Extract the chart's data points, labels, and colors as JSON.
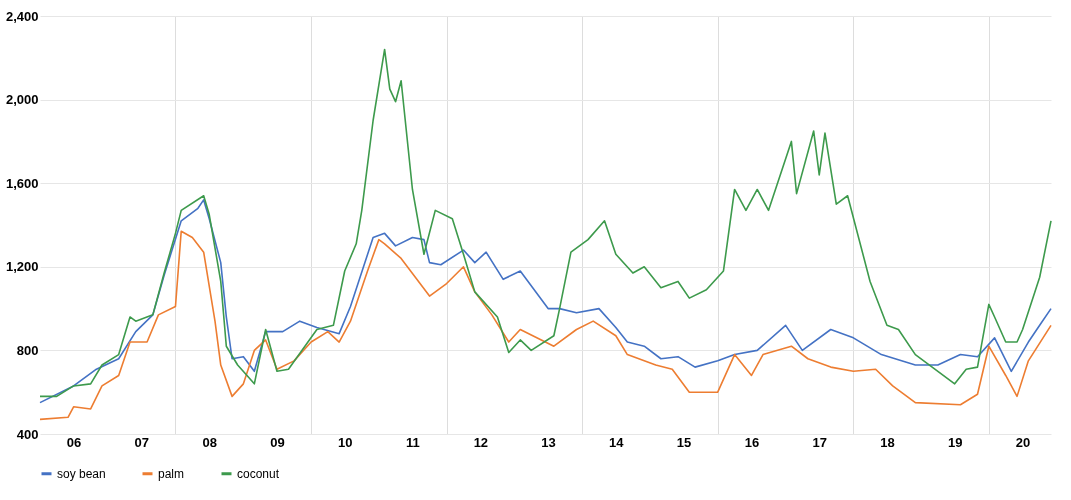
{
  "chart_data": {
    "type": "line",
    "xlim": [
      "2006-01",
      "2020-12"
    ],
    "xticks": [
      {
        "value": "2006-07",
        "label": "06"
      },
      {
        "value": "2007-07",
        "label": "07"
      },
      {
        "value": "2008-07",
        "label": "08"
      },
      {
        "value": "2009-07",
        "label": "09"
      },
      {
        "value": "2010-07",
        "label": "10"
      },
      {
        "value": "2011-07",
        "label": "11"
      },
      {
        "value": "2012-07",
        "label": "12"
      },
      {
        "value": "2013-07",
        "label": "13"
      },
      {
        "value": "2014-07",
        "label": "14"
      },
      {
        "value": "2015-07",
        "label": "15"
      },
      {
        "value": "2016-07",
        "label": "16"
      },
      {
        "value": "2017-07",
        "label": "17"
      },
      {
        "value": "2018-07",
        "label": "18"
      },
      {
        "value": "2019-07",
        "label": "19"
      },
      {
        "value": "2020-07",
        "label": "20"
      },
      {
        "value": "2008-01",
        "label": null
      },
      {
        "value": "2010-01",
        "label": null
      },
      {
        "value": "2012-01",
        "label": null
      },
      {
        "value": "2014-01",
        "label": null
      },
      {
        "value": "2016-01",
        "label": null
      },
      {
        "value": "2018-01",
        "label": null
      },
      {
        "value": "2020-01",
        "label": null
      }
    ],
    "ylim": [
      400,
      2400
    ],
    "yticks": [
      {
        "value": 400,
        "label": "400"
      },
      {
        "value": 800,
        "label": "800"
      },
      {
        "value": 1200,
        "label": "1,200"
      },
      {
        "value": 1600,
        "label": "1,600"
      },
      {
        "value": 2000,
        "label": "2,000"
      },
      {
        "value": 2400,
        "label": "2,400"
      }
    ],
    "grid": true,
    "legend": "bottom",
    "series": [
      {
        "name": "soy bean",
        "color": "#4472c4",
        "x": [
          "2006-01",
          "2006-07",
          "2006-11",
          "2007-03",
          "2007-06",
          "2007-09",
          "2007-11",
          "2008-02",
          "2008-05",
          "2008-06",
          "2008-07",
          "2008-09",
          "2008-10",
          "2008-11",
          "2009-01",
          "2009-03",
          "2009-05",
          "2009-08",
          "2009-11",
          "2010-02",
          "2010-06",
          "2010-08",
          "2010-12",
          "2011-02",
          "2011-04",
          "2011-07",
          "2011-09",
          "2011-10",
          "2011-12",
          "2012-04",
          "2012-06",
          "2012-08",
          "2012-11",
          "2013-02",
          "2013-07",
          "2013-09",
          "2013-12",
          "2014-04",
          "2014-07",
          "2014-09",
          "2014-12",
          "2015-03",
          "2015-06",
          "2015-09",
          "2016-01",
          "2016-04",
          "2016-08",
          "2017-01",
          "2017-04",
          "2017-09",
          "2018-01",
          "2018-06",
          "2018-12",
          "2019-04",
          "2019-08",
          "2019-11",
          "2020-02",
          "2020-05",
          "2020-08",
          "2020-10",
          "2020-12"
        ],
        "values": [
          550,
          630,
          710,
          760,
          890,
          970,
          1160,
          1420,
          1480,
          1520,
          1430,
          1220,
          960,
          760,
          770,
          700,
          890,
          890,
          940,
          910,
          880,
          1010,
          1340,
          1360,
          1300,
          1340,
          1330,
          1220,
          1210,
          1280,
          1220,
          1270,
          1140,
          1180,
          1000,
          1000,
          980,
          1000,
          910,
          840,
          820,
          760,
          770,
          720,
          750,
          780,
          800,
          920,
          800,
          900,
          860,
          780,
          730,
          730,
          780,
          770,
          860,
          700,
          840,
          920,
          1000
        ]
      },
      {
        "name": "palm",
        "color": "#ed7d31",
        "x": [
          "2006-01",
          "2006-06",
          "2006-07",
          "2006-10",
          "2006-12",
          "2007-03",
          "2007-05",
          "2007-08",
          "2007-10",
          "2008-01",
          "2008-02",
          "2008-04",
          "2008-06",
          "2008-08",
          "2008-09",
          "2008-11",
          "2009-01",
          "2009-03",
          "2009-05",
          "2009-07",
          "2009-10",
          "2010-01",
          "2010-04",
          "2010-06",
          "2010-08",
          "2010-11",
          "2011-01",
          "2011-02",
          "2011-05",
          "2011-10",
          "2012-01",
          "2012-04",
          "2012-06",
          "2012-09",
          "2012-12",
          "2013-02",
          "2013-08",
          "2013-12",
          "2014-03",
          "2014-07",
          "2014-09",
          "2015-02",
          "2015-05",
          "2015-08",
          "2016-01",
          "2016-04",
          "2016-07",
          "2016-09",
          "2017-02",
          "2017-05",
          "2017-09",
          "2018-01",
          "2018-05",
          "2018-08",
          "2018-12",
          "2019-08",
          "2019-11",
          "2020-01",
          "2020-04",
          "2020-06",
          "2020-08",
          "2020-12"
        ],
        "values": [
          470,
          480,
          530,
          520,
          630,
          680,
          840,
          840,
          970,
          1010,
          1370,
          1340,
          1270,
          940,
          730,
          580,
          640,
          800,
          850,
          710,
          750,
          840,
          890,
          840,
          940,
          1180,
          1330,
          1310,
          1240,
          1060,
          1120,
          1200,
          1080,
          970,
          840,
          900,
          820,
          900,
          940,
          870,
          780,
          730,
          710,
          600,
          600,
          780,
          680,
          780,
          820,
          760,
          720,
          700,
          710,
          630,
          550,
          540,
          590,
          820,
          680,
          580,
          750,
          920
        ]
      },
      {
        "name": "coconut",
        "color": "#3d9a4c",
        "x": [
          "2006-01",
          "2006-04",
          "2006-07",
          "2006-10",
          "2006-12",
          "2007-03",
          "2007-05",
          "2007-06",
          "2007-09",
          "2007-11",
          "2008-01",
          "2008-02",
          "2008-06",
          "2008-07",
          "2008-09",
          "2008-10",
          "2008-12",
          "2009-03",
          "2009-05",
          "2009-07",
          "2009-09",
          "2010-02",
          "2010-05",
          "2010-07",
          "2010-09",
          "2010-10",
          "2010-12",
          "2011-02",
          "2011-03",
          "2011-04",
          "2011-05",
          "2011-07",
          "2011-09",
          "2011-11",
          "2012-02",
          "2012-04",
          "2012-06",
          "2012-10",
          "2012-12",
          "2013-02",
          "2013-04",
          "2013-08",
          "2013-09",
          "2013-11",
          "2014-02",
          "2014-05",
          "2014-07",
          "2014-10",
          "2014-12",
          "2015-03",
          "2015-06",
          "2015-08",
          "2015-11",
          "2016-02",
          "2016-04",
          "2016-06",
          "2016-08",
          "2016-10",
          "2017-02",
          "2017-03",
          "2017-06",
          "2017-07",
          "2017-08",
          "2017-10",
          "2017-12",
          "2018-04",
          "2018-07",
          "2018-09",
          "2018-12",
          "2019-07",
          "2019-09",
          "2019-11",
          "2020-01",
          "2020-02",
          "2020-04",
          "2020-06",
          "2020-07",
          "2020-10",
          "2020-12"
        ],
        "values": [
          580,
          580,
          630,
          640,
          730,
          780,
          960,
          940,
          970,
          1170,
          1360,
          1470,
          1540,
          1450,
          1130,
          820,
          730,
          640,
          900,
          700,
          710,
          900,
          920,
          1180,
          1310,
          1470,
          1900,
          2240,
          2050,
          1990,
          2090,
          1570,
          1260,
          1470,
          1430,
          1260,
          1080,
          960,
          790,
          850,
          800,
          870,
          1000,
          1270,
          1330,
          1420,
          1260,
          1170,
          1200,
          1100,
          1130,
          1050,
          1090,
          1180,
          1570,
          1470,
          1570,
          1470,
          1800,
          1550,
          1850,
          1640,
          1840,
          1500,
          1540,
          1130,
          920,
          900,
          780,
          640,
          710,
          720,
          1020,
          960,
          840,
          840,
          900,
          1150,
          1420
        ]
      }
    ]
  }
}
